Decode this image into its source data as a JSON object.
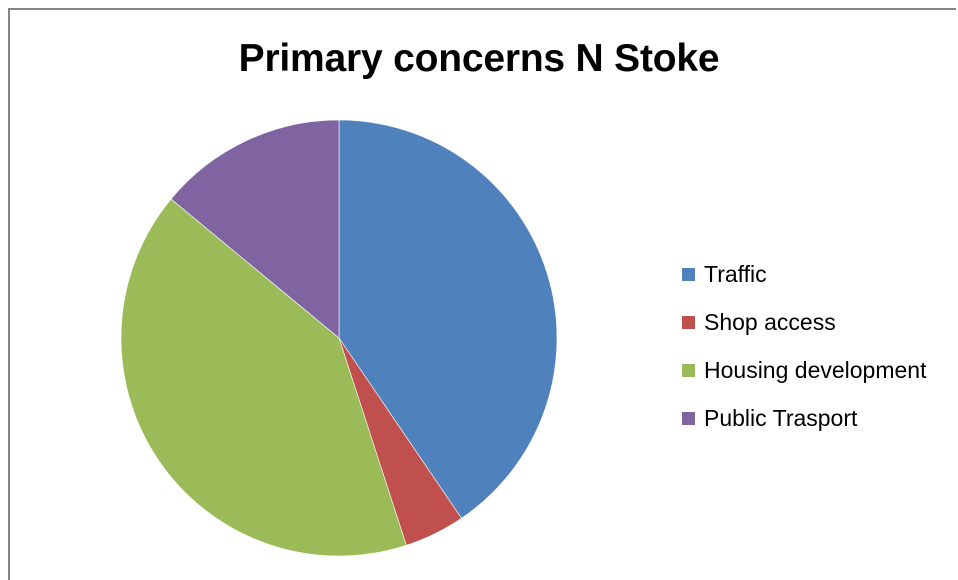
{
  "chart_data": {
    "type": "pie",
    "title": "Primary concerns N Stoke",
    "categories": [
      "Traffic",
      "Shop access",
      "Housing development",
      "Public Trasport"
    ],
    "values": [
      40.5,
      4.5,
      41.0,
      14.0
    ],
    "colors": [
      "#4F81BD",
      "#C0504D",
      "#9BBB59",
      "#8064A2"
    ],
    "start_angle_deg": 0,
    "direction": "clockwise",
    "legend_position": "right",
    "xlabel": "",
    "ylabel": ""
  }
}
